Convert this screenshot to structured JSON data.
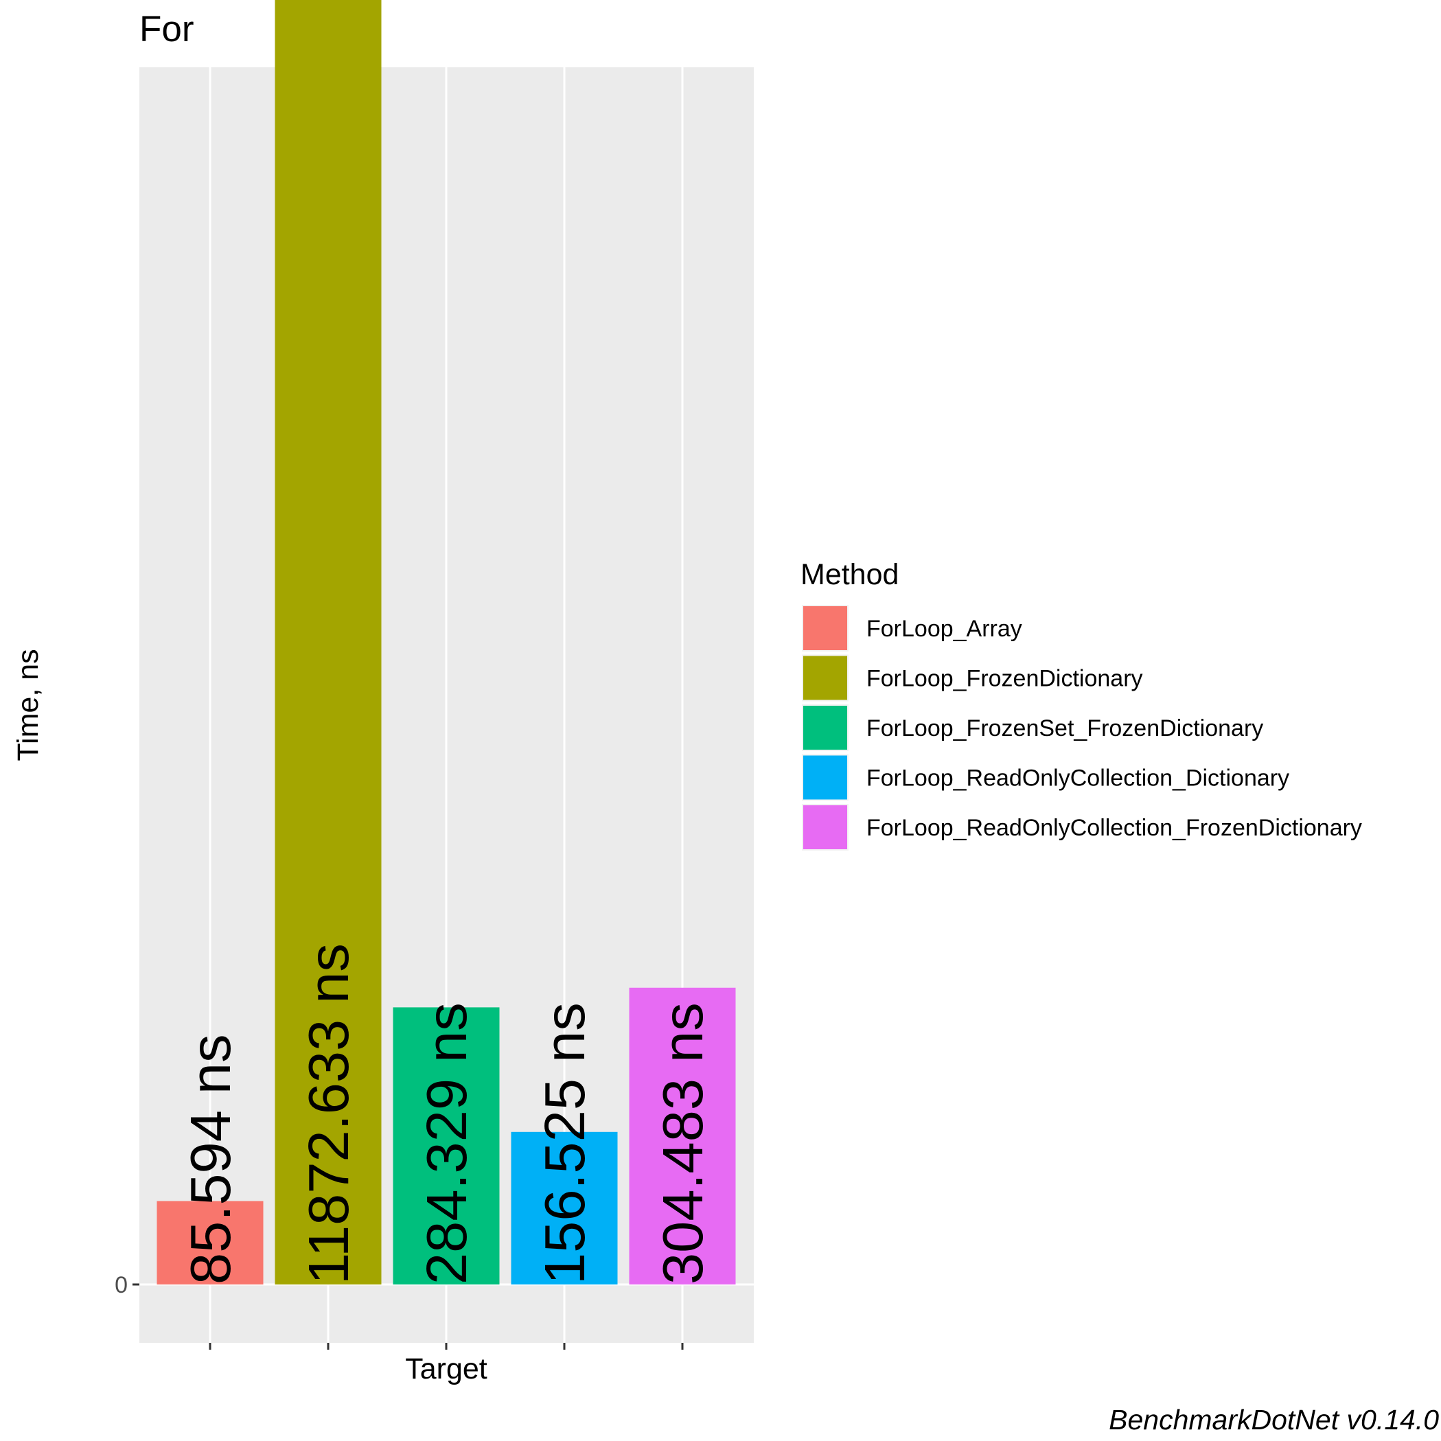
{
  "chart_data": {
    "type": "bar",
    "title": "For",
    "xlabel": "Target",
    "ylabel": "Time, ns",
    "ylim": [
      -1100,
      12300
    ],
    "yticks": [
      0,
      2500,
      5000,
      7500,
      10000
    ],
    "ytick_labels": [
      "0",
      "2500",
      "5000",
      "7500",
      "10000"
    ],
    "grid": true,
    "legend": {
      "title": "Method",
      "placement": "right"
    },
    "categories": [
      "ForLoop_Array",
      "ForLoop_FrozenDictionary",
      "ForLoop_FrozenSet_FrozenDictionary",
      "ForLoop_ReadOnlyCollection_Dictionary",
      "ForLoop_ReadOnlyCollection_FrozenDictionary"
    ],
    "values": [
      85.594,
      11872.633,
      284.329,
      156.525,
      304.483
    ],
    "data_labels": [
      "85.594 ns",
      "11872.633 ns",
      "284.329 ns",
      "156.525 ns",
      "304.483 ns"
    ],
    "colors": [
      "#F8766D",
      "#A3A500",
      "#00BF7D",
      "#00B0F6",
      "#E76BF3"
    ],
    "caption": "BenchmarkDotNet v0.14.0"
  }
}
